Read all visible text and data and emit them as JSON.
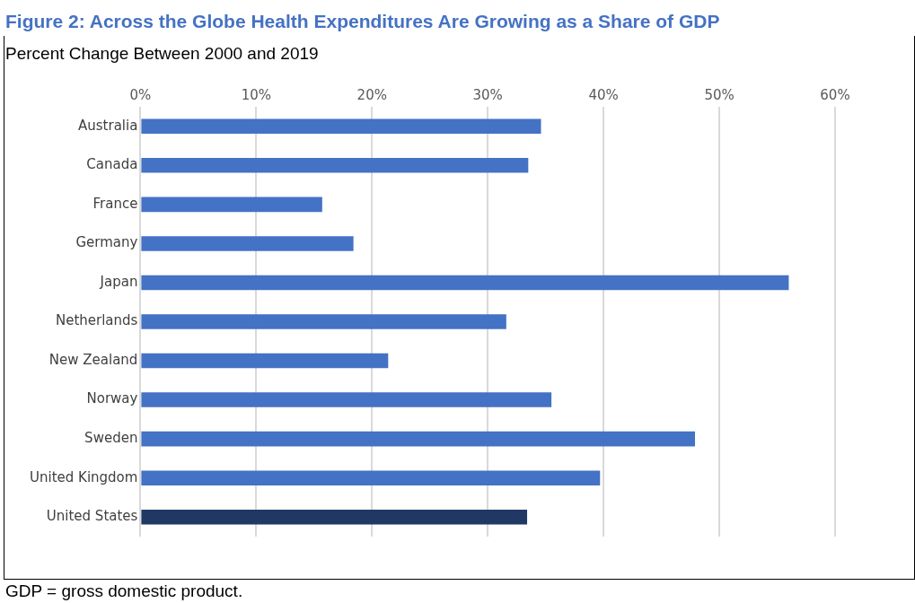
{
  "chart_data": {
    "type": "bar",
    "orientation": "horizontal",
    "title": "Figure 2: Across the Globe Health Expenditures Are Growing as a Share of GDP",
    "subtitle": "Percent Change Between 2000 and 2019",
    "categories": [
      "Australia",
      "Canada",
      "France",
      "Germany",
      "Japan",
      "Netherlands",
      "New Zealand",
      "Norway",
      "Sweden",
      "United Kingdom",
      "United States"
    ],
    "values": [
      34.6,
      33.5,
      15.7,
      18.4,
      56.0,
      31.6,
      21.4,
      35.5,
      47.9,
      39.7,
      33.4
    ],
    "colors": [
      "#4472c4",
      "#4472c4",
      "#4472c4",
      "#4472c4",
      "#4472c4",
      "#4472c4",
      "#4472c4",
      "#4472c4",
      "#4472c4",
      "#4472c4",
      "#203864"
    ],
    "xlim": [
      0,
      60
    ],
    "xticks": [
      {
        "value": 0,
        "label": "0%"
      },
      {
        "value": 10,
        "label": "10%"
      },
      {
        "value": 20,
        "label": "20%"
      },
      {
        "value": 30,
        "label": "30%"
      },
      {
        "value": 40,
        "label": "40%"
      },
      {
        "value": 50,
        "label": "50%"
      },
      {
        "value": 60,
        "label": "60%"
      }
    ],
    "grid": "x",
    "legend": false,
    "annotations": [
      "GDP = gross domestic product."
    ]
  }
}
